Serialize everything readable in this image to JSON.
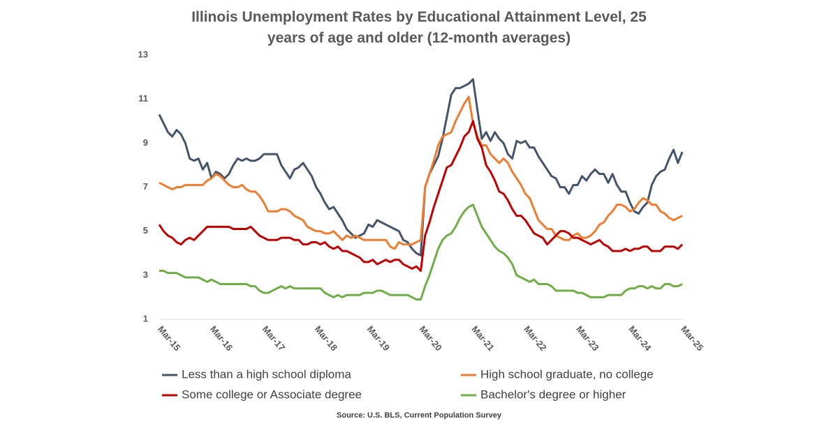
{
  "chart_data": {
    "type": "line",
    "title": "Illinois Unemployment Rates by Educational Attainment Level, 25 years of age and older (12-month averages)",
    "source": "Source: U.S. BLS, Current Population Survey",
    "categories": [
      "Mar-15",
      null,
      null,
      null,
      null,
      null,
      null,
      null,
      null,
      null,
      null,
      null,
      "Mar-16",
      null,
      null,
      null,
      null,
      null,
      null,
      null,
      null,
      null,
      null,
      null,
      "Mar-17",
      null,
      null,
      null,
      null,
      null,
      null,
      null,
      null,
      null,
      null,
      null,
      "Mar-18",
      null,
      null,
      null,
      null,
      null,
      null,
      null,
      null,
      null,
      null,
      null,
      "Mar-19",
      null,
      null,
      null,
      null,
      null,
      null,
      null,
      null,
      null,
      null,
      null,
      "Mar-20",
      null,
      null,
      null,
      null,
      null,
      null,
      null,
      null,
      null,
      null,
      null,
      "Mar-21",
      null,
      null,
      null,
      null,
      null,
      null,
      null,
      null,
      null,
      null,
      null,
      "Mar-22",
      null,
      null,
      null,
      null,
      null,
      null,
      null,
      null,
      null,
      null,
      null,
      "Mar-23",
      null,
      null,
      null,
      null,
      null,
      null,
      null,
      null,
      null,
      null,
      null,
      "Mar-24",
      null,
      null,
      null,
      null,
      null,
      null,
      null,
      null,
      null,
      null,
      null,
      "Mar-25"
    ],
    "series": [
      {
        "name": "Less than a high school diploma",
        "color": "#44546a",
        "values": [
          10.3,
          9.9,
          9.5,
          9.3,
          9.6,
          9.4,
          9.0,
          8.3,
          8.2,
          8.3,
          7.8,
          8.1,
          7.4,
          7.7,
          7.6,
          7.4,
          7.6,
          8.0,
          8.3,
          8.2,
          8.3,
          8.2,
          8.2,
          8.3,
          8.5,
          8.5,
          8.5,
          8.5,
          8.0,
          7.7,
          7.4,
          7.8,
          7.9,
          8.1,
          7.8,
          7.5,
          7.0,
          6.7,
          6.3,
          6.0,
          6.1,
          5.8,
          5.5,
          5.1,
          4.9,
          4.7,
          4.8,
          4.9,
          5.3,
          5.2,
          5.5,
          5.4,
          5.3,
          5.2,
          5.1,
          5.0,
          4.6,
          4.5,
          4.2,
          4.0,
          3.9,
          7.0,
          7.6,
          8.0,
          8.4,
          9.2,
          10.2,
          11.2,
          11.5,
          11.5,
          11.6,
          11.7,
          11.9,
          10.5,
          9.2,
          9.5,
          9.1,
          9.5,
          9.2,
          9.0,
          8.5,
          8.3,
          9.1,
          9.0,
          9.1,
          8.8,
          8.8,
          8.4,
          8.1,
          7.8,
          7.5,
          7.4,
          7.0,
          7.0,
          6.7,
          7.1,
          7.1,
          7.5,
          7.3,
          7.6,
          7.8,
          7.6,
          7.6,
          7.2,
          7.6,
          7.1,
          6.8,
          6.8,
          6.3,
          5.9,
          5.8,
          6.1,
          6.3,
          7.1,
          7.5,
          7.7,
          7.8,
          8.3,
          8.7,
          8.1,
          8.6
        ]
      },
      {
        "name": "High school graduate, no college",
        "color": "#ed7d31",
        "values": [
          7.2,
          7.1,
          7.0,
          6.9,
          7.0,
          7.0,
          7.1,
          7.1,
          7.1,
          7.1,
          7.1,
          7.3,
          7.4,
          7.6,
          7.5,
          7.3,
          7.1,
          7.0,
          7.0,
          7.1,
          6.9,
          6.8,
          6.8,
          6.6,
          6.3,
          5.9,
          5.9,
          5.9,
          6.0,
          6.0,
          5.9,
          5.7,
          5.6,
          5.5,
          5.2,
          5.1,
          5.0,
          5.0,
          4.9,
          4.9,
          5.0,
          4.8,
          4.6,
          4.8,
          4.7,
          4.8,
          4.7,
          4.6,
          4.6,
          4.6,
          4.6,
          4.6,
          4.6,
          4.3,
          4.2,
          4.5,
          4.4,
          4.4,
          4.4,
          4.5,
          4.6,
          7.0,
          7.6,
          8.2,
          8.9,
          9.3,
          9.4,
          9.5,
          10.0,
          10.4,
          10.8,
          11.1,
          9.9,
          9.3,
          8.9,
          8.9,
          8.5,
          8.3,
          8.1,
          8.3,
          8.1,
          7.7,
          7.4,
          7.1,
          6.7,
          6.5,
          6.0,
          5.5,
          5.3,
          5.1,
          5.1,
          4.8,
          4.7,
          4.6,
          4.6,
          4.8,
          4.9,
          4.7,
          4.7,
          4.8,
          5.0,
          5.3,
          5.4,
          5.7,
          5.9,
          6.2,
          6.2,
          6.1,
          5.9,
          6.0,
          6.3,
          6.5,
          6.4,
          6.2,
          6.2,
          5.9,
          5.8,
          5.6,
          5.5,
          5.6,
          5.7
        ]
      },
      {
        "name": "Some college or Associate degree",
        "color": "#c00000",
        "values": [
          5.3,
          5.0,
          4.8,
          4.7,
          4.5,
          4.4,
          4.6,
          4.7,
          4.6,
          4.8,
          5.0,
          5.2,
          5.2,
          5.2,
          5.2,
          5.2,
          5.2,
          5.1,
          5.1,
          5.1,
          5.1,
          5.2,
          5.0,
          4.8,
          4.7,
          4.6,
          4.6,
          4.6,
          4.7,
          4.7,
          4.7,
          4.6,
          4.6,
          4.4,
          4.4,
          4.5,
          4.5,
          4.4,
          4.5,
          4.3,
          4.2,
          4.3,
          4.1,
          4.1,
          4.0,
          3.9,
          3.8,
          3.6,
          3.6,
          3.7,
          3.5,
          3.6,
          3.7,
          3.6,
          3.7,
          3.7,
          3.5,
          3.4,
          3.3,
          3.4,
          3.2,
          4.8,
          5.4,
          6.1,
          6.7,
          7.3,
          7.9,
          8.0,
          8.4,
          8.8,
          9.3,
          9.5,
          10.0,
          9.2,
          8.8,
          8.0,
          7.7,
          7.3,
          6.8,
          6.7,
          6.4,
          6.0,
          5.7,
          5.7,
          5.5,
          5.2,
          4.9,
          4.8,
          4.7,
          4.4,
          4.6,
          4.8,
          5.0,
          5.0,
          4.9,
          4.7,
          4.7,
          4.6,
          4.5,
          4.4,
          4.5,
          4.6,
          4.4,
          4.3,
          4.1,
          4.1,
          4.1,
          4.2,
          4.1,
          4.2,
          4.2,
          4.3,
          4.3,
          4.1,
          4.1,
          4.1,
          4.3,
          4.3,
          4.3,
          4.2,
          4.4
        ]
      },
      {
        "name": "Bachelor's degree or higher",
        "color": "#70ad47",
        "values": [
          3.2,
          3.2,
          3.1,
          3.1,
          3.1,
          3.0,
          2.9,
          2.9,
          2.9,
          2.9,
          2.8,
          2.7,
          2.8,
          2.7,
          2.6,
          2.6,
          2.6,
          2.6,
          2.6,
          2.6,
          2.6,
          2.5,
          2.5,
          2.3,
          2.2,
          2.2,
          2.3,
          2.4,
          2.5,
          2.4,
          2.5,
          2.4,
          2.4,
          2.4,
          2.4,
          2.4,
          2.4,
          2.4,
          2.2,
          2.1,
          2.0,
          2.1,
          2.0,
          2.1,
          2.1,
          2.1,
          2.1,
          2.2,
          2.2,
          2.2,
          2.3,
          2.3,
          2.2,
          2.1,
          2.1,
          2.1,
          2.1,
          2.1,
          2.0,
          1.9,
          1.9,
          2.5,
          3.0,
          3.6,
          4.2,
          4.6,
          4.8,
          4.9,
          5.2,
          5.6,
          5.9,
          6.1,
          6.2,
          5.7,
          5.2,
          4.9,
          4.6,
          4.3,
          4.1,
          4.0,
          3.8,
          3.5,
          3.0,
          2.9,
          2.8,
          2.7,
          2.8,
          2.6,
          2.6,
          2.6,
          2.5,
          2.3,
          2.3,
          2.3,
          2.3,
          2.3,
          2.2,
          2.2,
          2.1,
          2.0,
          2.0,
          2.0,
          2.0,
          2.1,
          2.1,
          2.1,
          2.1,
          2.3,
          2.4,
          2.4,
          2.5,
          2.5,
          2.4,
          2.5,
          2.4,
          2.4,
          2.6,
          2.6,
          2.5,
          2.5,
          2.6
        ]
      }
    ],
    "ylim": [
      1,
      13
    ],
    "yticks": [
      1,
      3,
      5,
      7,
      9,
      11,
      13
    ],
    "grid": false
  }
}
